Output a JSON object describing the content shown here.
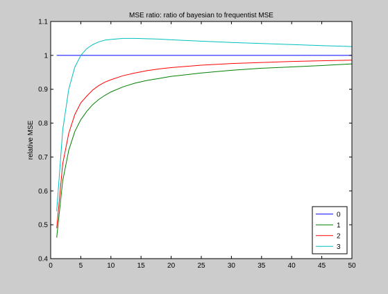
{
  "chart_data": {
    "type": "line",
    "title": "MSE ratio: ratio of bayesian to frequentist MSE",
    "xlabel": "",
    "ylabel": "relative MSE",
    "xlim": [
      0,
      50
    ],
    "ylim": [
      0.4,
      1.1
    ],
    "xticks": [
      0,
      5,
      10,
      15,
      20,
      25,
      30,
      35,
      40,
      45,
      50
    ],
    "yticks": [
      0.4,
      0.5,
      0.6,
      0.7,
      0.8,
      0.9,
      1,
      1.1
    ],
    "grid": false,
    "legend": "bottom-right",
    "x": [
      1,
      2,
      3,
      4,
      5,
      6,
      7,
      8,
      9,
      10,
      12,
      14,
      16,
      18,
      20,
      25,
      30,
      35,
      40,
      45,
      50
    ],
    "series": [
      {
        "name": "0",
        "color": "#0000ff",
        "values": [
          1,
          1,
          1,
          1,
          1,
          1,
          1,
          1,
          1,
          1,
          1,
          1,
          1,
          1,
          1,
          1,
          1,
          1,
          1,
          1,
          1
        ]
      },
      {
        "name": "1",
        "color": "#008000",
        "values": [
          0.462,
          0.63,
          0.72,
          0.775,
          0.81,
          0.835,
          0.855,
          0.87,
          0.882,
          0.892,
          0.907,
          0.918,
          0.926,
          0.932,
          0.938,
          0.948,
          0.956,
          0.962,
          0.966,
          0.97,
          0.975
        ]
      },
      {
        "name": "2",
        "color": "#ff0000",
        "values": [
          0.49,
          0.68,
          0.77,
          0.825,
          0.86,
          0.88,
          0.898,
          0.911,
          0.921,
          0.928,
          0.94,
          0.948,
          0.955,
          0.96,
          0.964,
          0.971,
          0.976,
          0.979,
          0.982,
          0.984,
          0.986
        ]
      },
      {
        "name": "3",
        "color": "#00bfbf",
        "values": [
          0.54,
          0.78,
          0.9,
          0.965,
          1.0,
          1.02,
          1.032,
          1.04,
          1.045,
          1.047,
          1.05,
          1.05,
          1.049,
          1.048,
          1.046,
          1.042,
          1.038,
          1.035,
          1.032,
          1.029,
          1.026
        ]
      }
    ]
  }
}
